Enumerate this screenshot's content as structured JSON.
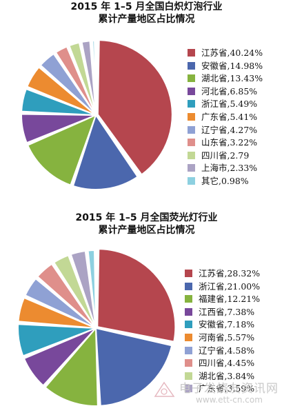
{
  "chart_data": [
    {
      "type": "pie",
      "title": "2015 年 1–5 月全国白炽灯泡行业",
      "subtitle": "累计产量地区占比情况",
      "legend_position": "right",
      "slices": [
        {
          "label": "江苏省,40.24%",
          "value": 40.24,
          "color": "#b5464e"
        },
        {
          "label": "安徽省,14.98%",
          "value": 14.98,
          "color": "#4b67ad"
        },
        {
          "label": "湖北省,13.43%",
          "value": 13.43,
          "color": "#86b33f"
        },
        {
          "label": "河北省,6.85%",
          "value": 6.85,
          "color": "#78489b"
        },
        {
          "label": "浙江省,5.49%",
          "value": 5.49,
          "color": "#2f9ebd"
        },
        {
          "label": "广东省,5.41%",
          "value": 5.41,
          "color": "#ec8b30"
        },
        {
          "label": "辽宁省,4.27%",
          "value": 4.27,
          "color": "#8fa1d4"
        },
        {
          "label": "山东省,3.22%",
          "value": 3.22,
          "color": "#df8f8b"
        },
        {
          "label": "四川省,2.79",
          "value": 2.79,
          "color": "#c2d895"
        },
        {
          "label": "上海市,2.33%",
          "value": 2.33,
          "color": "#aba3c4"
        },
        {
          "label": "其它,0.98%",
          "value": 0.98,
          "color": "#8dd0e0"
        }
      ]
    },
    {
      "type": "pie",
      "title": "2015 年 1–5 月全国荧光灯行业",
      "subtitle": "累计产量地区占比情况",
      "legend_position": "right",
      "slices": [
        {
          "label": "江苏省,28.32%",
          "value": 28.32,
          "color": "#b5464e"
        },
        {
          "label": "浙江省,21.00%",
          "value": 21.0,
          "color": "#4b67ad"
        },
        {
          "label": "福建省,12.21%",
          "value": 12.21,
          "color": "#86b33f"
        },
        {
          "label": "江西省,7.38%",
          "value": 7.38,
          "color": "#78489b"
        },
        {
          "label": "安徽省,7.18%",
          "value": 7.18,
          "color": "#2f9ebd"
        },
        {
          "label": "河南省,5.57%",
          "value": 5.57,
          "color": "#ec8b30"
        },
        {
          "label": "辽宁省,4.58%",
          "value": 4.58,
          "color": "#8fa1d4"
        },
        {
          "label": "四川省,4.45%",
          "value": 4.45,
          "color": "#df8f8b"
        },
        {
          "label": "湖北省,3.84%",
          "value": 3.84,
          "color": "#c2d895"
        },
        {
          "label": "广东省,3.59%",
          "value": 3.59,
          "color": "#aba3c4"
        },
        {
          "label": "",
          "value": 1.88,
          "color": "#8dd0e0"
        }
      ]
    }
  ],
  "watermark": {
    "title": "电子发烧友资讯网",
    "url": "www.ett-cn.com"
  }
}
